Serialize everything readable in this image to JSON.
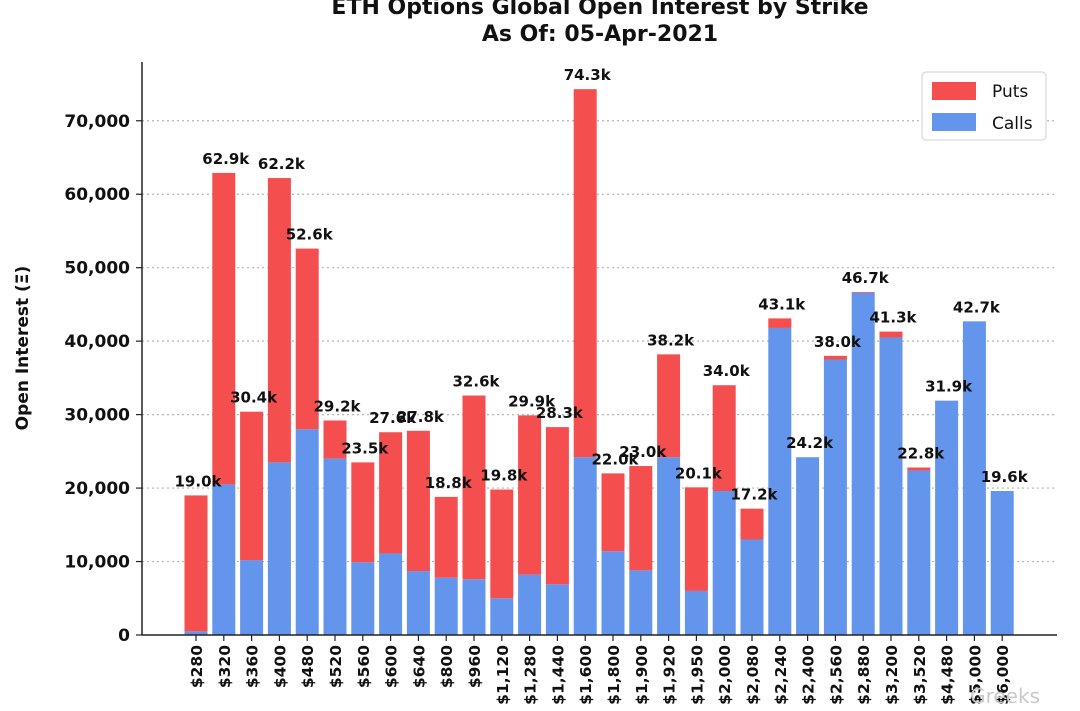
{
  "chart_data": {
    "type": "bar",
    "stacked": true,
    "title": "ETH Options Global Open Interest by Strike",
    "subtitle": "As Of: 05-Apr-2021",
    "xlabel": "",
    "ylabel": "Open Interest (Ξ)",
    "ylim": [
      0,
      78000
    ],
    "yticks": [
      0,
      10000,
      20000,
      30000,
      40000,
      50000,
      60000,
      70000
    ],
    "ytick_labels": [
      "0",
      "10,000",
      "20,000",
      "30,000",
      "40,000",
      "50,000",
      "60,000",
      "70,000"
    ],
    "grid": "horizontal dotted",
    "legend": "top-right",
    "categories": [
      "$280",
      "$320",
      "$360",
      "$400",
      "$480",
      "$520",
      "$560",
      "$600",
      "$640",
      "$800",
      "$960",
      "$1,120",
      "$1,280",
      "$1,440",
      "$1,600",
      "$1,800",
      "$1,900",
      "$1,920",
      "$1,950",
      "$2,000",
      "$2,080",
      "$2,240",
      "$2,400",
      "$2,560",
      "$2,880",
      "$3,200",
      "$3,520",
      "$4,480",
      "$5,000",
      "$6,000"
    ],
    "series": [
      {
        "name": "Calls",
        "color": "#6495ed",
        "values": [
          500,
          20500,
          10200,
          23500,
          28000,
          24000,
          9900,
          11100,
          8700,
          7800,
          7600,
          5000,
          8200,
          6900,
          24200,
          11400,
          8800,
          24200,
          6000,
          19600,
          13000,
          41800,
          24200,
          37500,
          46600,
          40500,
          22400,
          31900,
          42700,
          19600
        ]
      },
      {
        "name": "Puts",
        "color": "#f44e4e",
        "values": [
          18500,
          42400,
          20200,
          38700,
          24600,
          5200,
          13600,
          16500,
          19100,
          11000,
          25000,
          14800,
          21700,
          21400,
          50100,
          10600,
          14200,
          14000,
          14100,
          14400,
          4200,
          1300,
          0,
          500,
          100,
          800,
          400,
          0,
          0,
          0
        ]
      }
    ],
    "totals_labels": [
      "19.0k",
      "62.9k",
      "30.4k",
      "62.2k",
      "52.6k",
      "29.2k",
      "23.5k",
      "27.6k",
      "27.8k",
      "18.8k",
      "32.6k",
      "19.8k",
      "29.9k",
      "28.3k",
      "74.3k",
      "22.0k",
      "23.0k",
      "38.2k",
      "20.1k",
      "34.0k",
      "17.2k",
      "43.1k",
      "24.2k",
      "38.0k",
      "46.7k",
      "41.3k",
      "22.8k",
      "31.9k",
      "42.7k",
      "19.6k"
    ]
  },
  "legend": {
    "puts_label": "Puts",
    "calls_label": "Calls"
  },
  "watermark": {
    "text": "Greeks"
  }
}
